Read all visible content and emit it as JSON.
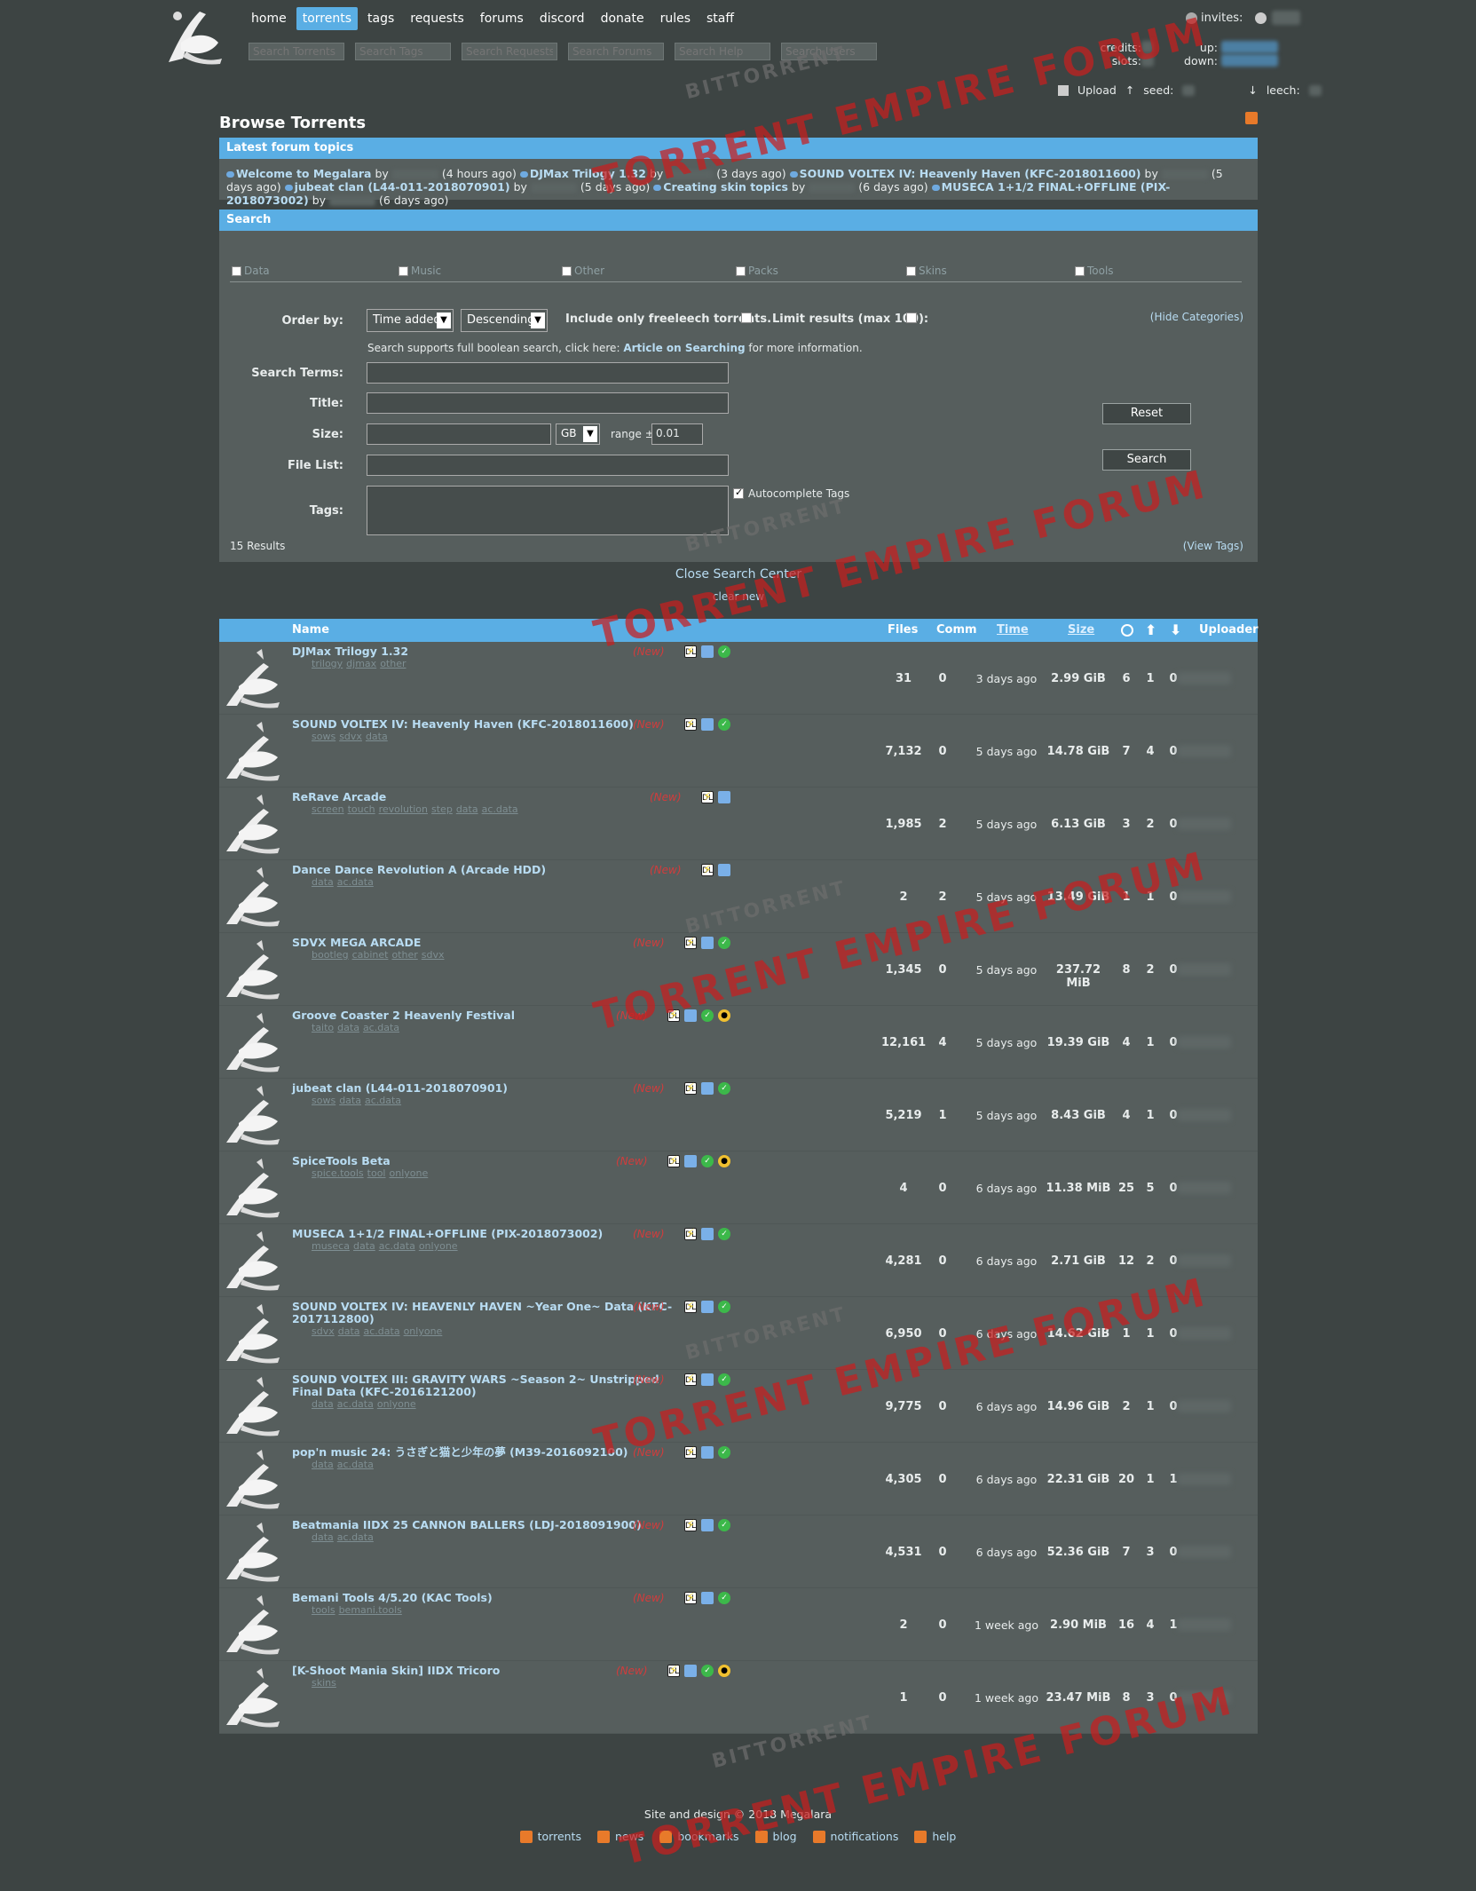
{
  "nav": [
    "home",
    "torrents",
    "tags",
    "requests",
    "forums",
    "discord",
    "donate",
    "rules",
    "staff"
  ],
  "nav_active": "torrents",
  "search_placeholders": [
    "Search Torrents",
    "Search Tags",
    "Search Requests",
    "Search Forums",
    "Search Help",
    "Search Users"
  ],
  "user": {
    "invites_label": "invites:",
    "credits_label": "credits:",
    "slots_label": "slots:",
    "up_label": "up:",
    "down_label": "down:",
    "upload_label": "Upload",
    "seed_label": "seed:",
    "leech_label": "leech:"
  },
  "page_title": "Browse Torrents",
  "forum": {
    "header": "Latest forum topics",
    "topics": [
      {
        "title": "Welcome to Megalara",
        "time": "(4 hours ago)"
      },
      {
        "title": "DJMax Trilogy 1.32",
        "time": "(3 days ago)"
      },
      {
        "title": "SOUND VOLTEX IV: Heavenly Haven (KFC-2018011600)",
        "time": "(5 days ago)"
      },
      {
        "title": "jubeat clan (L44-011-2018070901)",
        "time": "(5 days ago)"
      },
      {
        "title": "Creating skin topics",
        "time": "(6 days ago)"
      },
      {
        "title": "MUSECA 1+1/2 FINAL+OFFLINE (PIX-2018073002)",
        "time": "(6 days ago)"
      }
    ],
    "by": "by"
  },
  "search": {
    "header": "Search",
    "categories": [
      "Data",
      "Music",
      "Other",
      "Packs",
      "Skins",
      "Tools"
    ],
    "order_by_label": "Order by:",
    "order_by_value": "Time added",
    "order_dir": "Descending",
    "freeleech_label": "Include only freeleech torrents.",
    "limit_label": "Limit results (max 100):",
    "hide_categories": "(Hide Categories)",
    "boolean_note_pre": "Search supports full boolean search, click here: ",
    "boolean_link": "Article on Searching",
    "boolean_note_post": " for more information.",
    "search_terms_label": "Search Terms:",
    "title_label": "Title:",
    "size_label": "Size:",
    "size_unit": "GB",
    "range_label": "range ±",
    "range_value": "0.01",
    "file_list_label": "File List:",
    "tags_label": "Tags:",
    "autocomplete_label": "Autocomplete Tags",
    "reset_label": "Reset",
    "search_label": "Search",
    "results_count": "15 Results",
    "view_tags": "(View Tags)",
    "close_search_center": "Close Search Center",
    "clear_new": "clear new"
  },
  "table": {
    "headers": {
      "name": "Name",
      "files": "Files",
      "comm": "Comm",
      "time": "Time",
      "size": "Size",
      "uploader": "Uploader"
    },
    "new_label": "(New)",
    "rows": [
      {
        "name": "DJMax Trilogy 1.32",
        "tags": [
          "trilogy",
          "djmax",
          "other"
        ],
        "files": "31",
        "comm": "0",
        "time": "3 days ago",
        "size": "2.99 GiB",
        "snatch": "6",
        "seed": "1",
        "leech": "0"
      },
      {
        "name": "SOUND VOLTEX IV: Heavenly Haven (KFC-2018011600)",
        "tags": [
          "sows",
          "sdvx",
          "data"
        ],
        "files": "7,132",
        "comm": "0",
        "time": "5 days ago",
        "size": "14.78 GiB",
        "snatch": "7",
        "seed": "4",
        "leech": "0"
      },
      {
        "name": "ReRave Arcade",
        "tags": [
          "screen",
          "touch",
          "revolution",
          "step",
          "data",
          "ac.data"
        ],
        "files": "1,985",
        "comm": "2",
        "time": "5 days ago",
        "size": "6.13 GiB",
        "snatch": "3",
        "seed": "2",
        "leech": "0"
      },
      {
        "name": "Dance Dance Revolution A (Arcade HDD)",
        "tags": [
          "data",
          "ac.data"
        ],
        "files": "2",
        "comm": "2",
        "time": "5 days ago",
        "size": "13.49 GiB",
        "snatch": "1",
        "seed": "1",
        "leech": "0"
      },
      {
        "name": "SDVX MEGA ARCADE",
        "tags": [
          "bootleg",
          "cabinet",
          "other",
          "sdvx"
        ],
        "files": "1,345",
        "comm": "0",
        "time": "5 days ago",
        "size": "237.72 MiB",
        "snatch": "8",
        "seed": "2",
        "leech": "0"
      },
      {
        "name": "Groove Coaster 2 Heavenly Festival",
        "tags": [
          "taito",
          "data",
          "ac.data"
        ],
        "files": "12,161",
        "comm": "4",
        "time": "5 days ago",
        "size": "19.39 GiB",
        "snatch": "4",
        "seed": "1",
        "leech": "0"
      },
      {
        "name": "jubeat clan (L44-011-2018070901)",
        "tags": [
          "sows",
          "data",
          "ac.data"
        ],
        "files": "5,219",
        "comm": "1",
        "time": "5 days ago",
        "size": "8.43 GiB",
        "snatch": "4",
        "seed": "1",
        "leech": "0"
      },
      {
        "name": "SpiceTools Beta",
        "tags": [
          "spice.tools",
          "tool",
          "onlyone"
        ],
        "files": "4",
        "comm": "0",
        "time": "6 days ago",
        "size": "11.38 MiB",
        "snatch": "25",
        "seed": "5",
        "leech": "0"
      },
      {
        "name": "MUSECA 1+1/2 FINAL+OFFLINE (PIX-2018073002)",
        "tags": [
          "museca",
          "data",
          "ac.data",
          "onlyone"
        ],
        "files": "4,281",
        "comm": "0",
        "time": "6 days ago",
        "size": "2.71 GiB",
        "snatch": "12",
        "seed": "2",
        "leech": "0"
      },
      {
        "name": "SOUND VOLTEX IV: HEAVENLY HAVEN ~Year One~ Data (KFC-2017112800)",
        "tags": [
          "sdvx",
          "data",
          "ac.data",
          "onlyone"
        ],
        "files": "6,950",
        "comm": "0",
        "time": "6 days ago",
        "size": "14.62 GiB",
        "snatch": "1",
        "seed": "1",
        "leech": "0"
      },
      {
        "name": "SOUND VOLTEX III: GRAVITY WARS ~Season 2~ Unstripped Final Data (KFC-2016121200)",
        "tags": [
          "data",
          "ac.data",
          "onlyone"
        ],
        "files": "9,775",
        "comm": "0",
        "time": "6 days ago",
        "size": "14.96 GiB",
        "snatch": "2",
        "seed": "1",
        "leech": "0"
      },
      {
        "name": "pop'n music 24: うさぎと猫と少年の夢 (M39-2016092100)",
        "tags": [
          "data",
          "ac.data"
        ],
        "files": "4,305",
        "comm": "0",
        "time": "6 days ago",
        "size": "22.31 GiB",
        "snatch": "20",
        "seed": "1",
        "leech": "1"
      },
      {
        "name": "Beatmania IIDX 25 CANNON BALLERS (LDJ-2018091900)",
        "tags": [
          "data",
          "ac.data"
        ],
        "files": "4,531",
        "comm": "0",
        "time": "6 days ago",
        "size": "52.36 GiB",
        "snatch": "7",
        "seed": "3",
        "leech": "0"
      },
      {
        "name": "Bemani Tools 4/5.20 (KAC Tools)",
        "tags": [
          "tools",
          "bemani.tools"
        ],
        "files": "2",
        "comm": "0",
        "time": "1 week ago",
        "size": "2.90 MiB",
        "snatch": "16",
        "seed": "4",
        "leech": "1"
      },
      {
        "name": "[K-Shoot Mania Skin] IIDX Tricoro",
        "tags": [
          "skins"
        ],
        "files": "1",
        "comm": "0",
        "time": "1 week ago",
        "size": "23.47 MiB",
        "snatch": "8",
        "seed": "3",
        "leech": "0"
      }
    ]
  },
  "footer": {
    "copyright": "Site and design © 2018 Megalara",
    "links": [
      "torrents",
      "news",
      "bookmarks",
      "blog",
      "notifications",
      "help"
    ]
  },
  "watermark": {
    "small": "BITTORRENT",
    "big": "TORRENT EMPIRE FORUM"
  }
}
